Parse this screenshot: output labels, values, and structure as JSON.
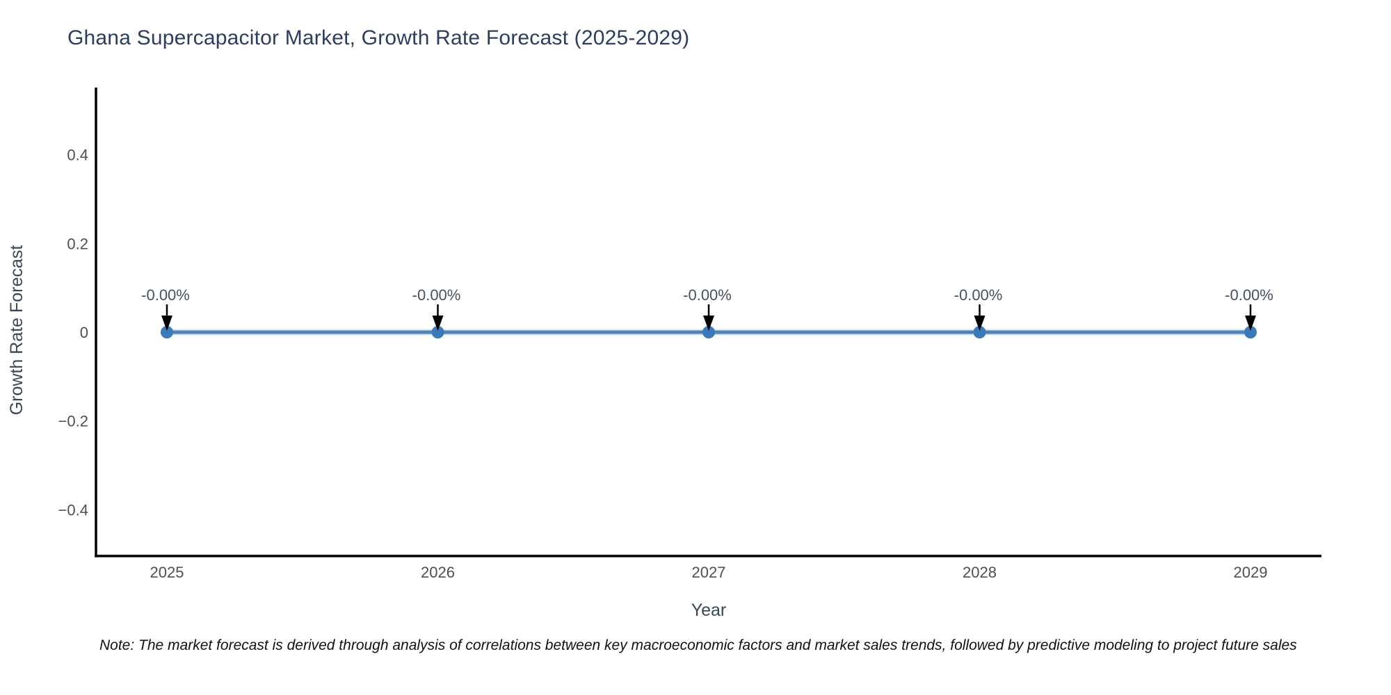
{
  "title": "Ghana Supercapacitor Market, Growth Rate Forecast (2025-2029)",
  "note": "Note: The market forecast is derived through analysis of correlations between key macroeconomic factors and market sales trends, followed by predictive modeling to project future sales",
  "colors": {
    "title": "#2e3d5e",
    "tick_label": "#4f4f4f",
    "axis_title": "#3d4653",
    "annotation_text": "#49505a",
    "annotation_arrow": "#000000",
    "axis_line": "#000000",
    "line": "#4d84b4",
    "line_halo": "#a8c4de",
    "marker": "#3b7ab8",
    "note_text": "#111111",
    "background": "#ffffff"
  },
  "chart_data": {
    "type": "line",
    "title": "Ghana Supercapacitor Market, Growth Rate Forecast (2025-2029)",
    "xlabel": "Year",
    "ylabel": "Growth Rate Forecast",
    "x": [
      2025,
      2026,
      2027,
      2028,
      2029
    ],
    "y": [
      0,
      0,
      0,
      0,
      0
    ],
    "point_labels": [
      "-0.00%",
      "-0.00%",
      "-0.00%",
      "-0.00%",
      "-0.00%"
    ],
    "x_tick_labels": [
      "2025",
      "2026",
      "2027",
      "2028",
      "2029"
    ],
    "y_ticks": [
      0.4,
      0.2,
      0,
      -0.2,
      -0.4
    ],
    "y_tick_labels": [
      "0.4",
      "0.2",
      "0",
      "−0.2",
      "−0.4"
    ],
    "ylim": [
      -0.5,
      0.5
    ],
    "grid": false,
    "legend": null,
    "marker_style": "circle",
    "annotation_style": "down-arrow"
  }
}
